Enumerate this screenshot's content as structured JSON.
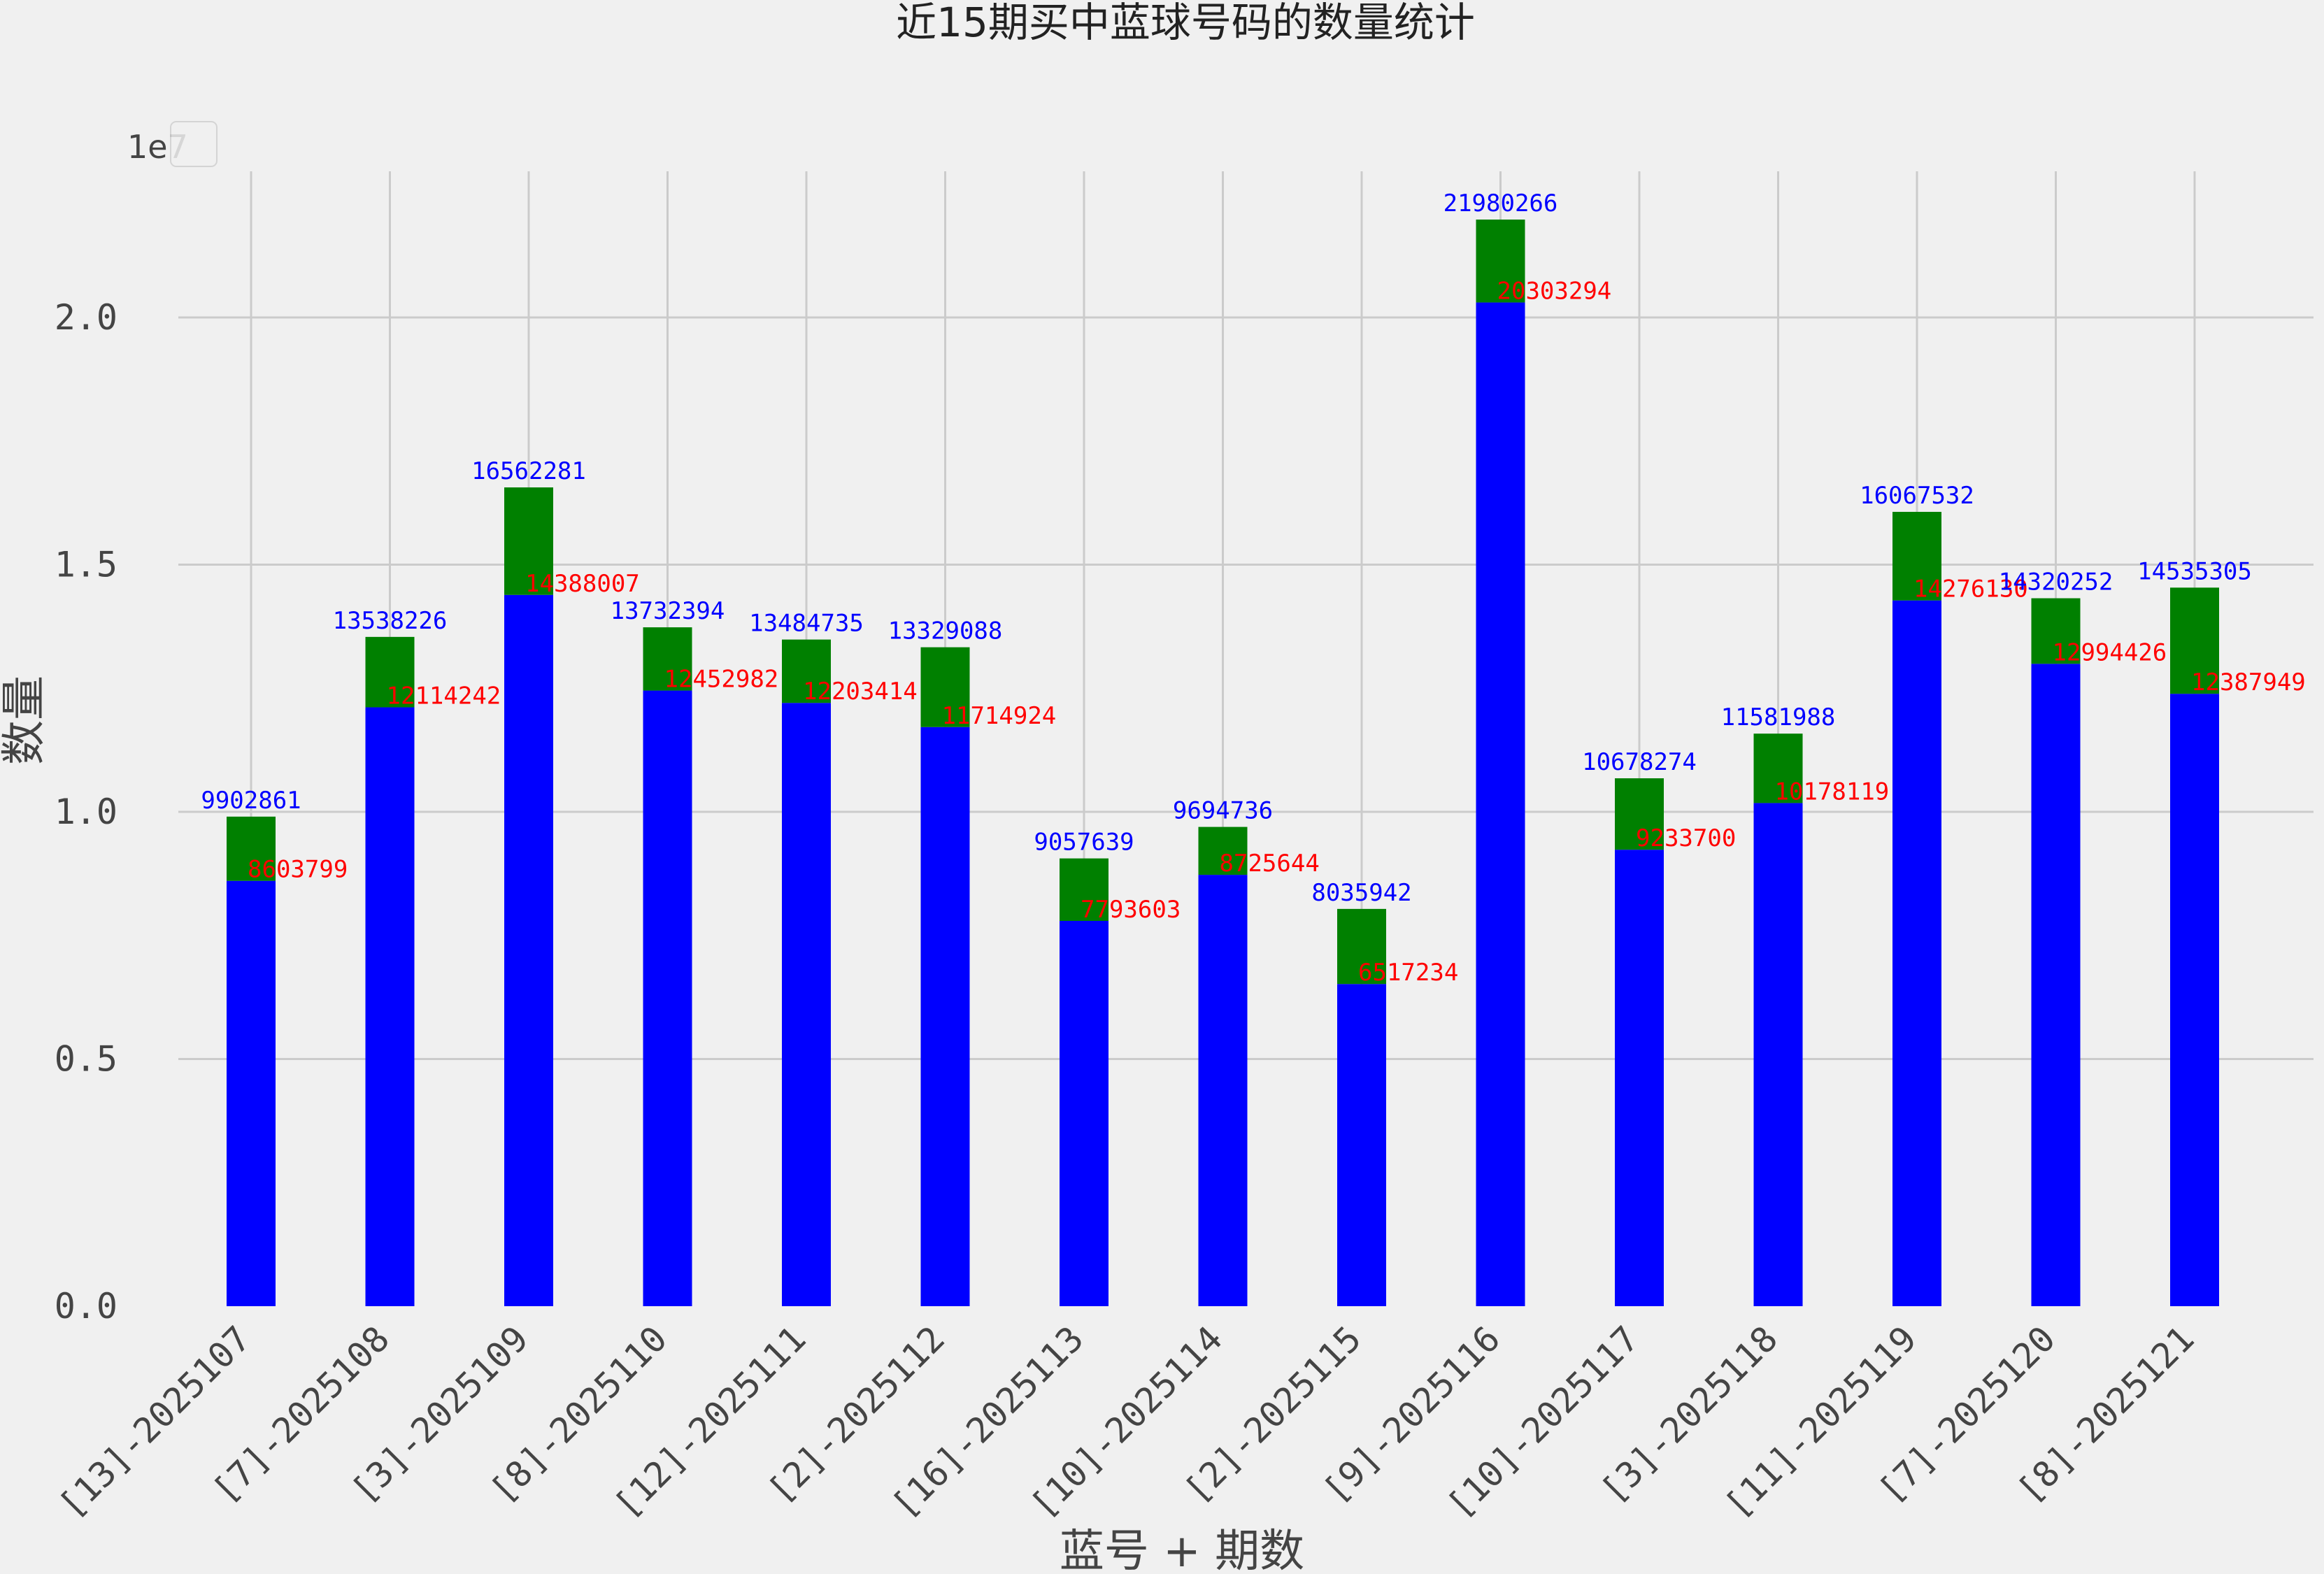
{
  "chart_data": {
    "type": "bar",
    "stacked": true,
    "title": "近15期买中蓝球号码的数量统计",
    "xlabel": "蓝号 + 期数",
    "ylabel": "数量",
    "y_offset_label": "1e7",
    "yticks": [
      "0.0",
      "0.5",
      "1.0",
      "1.5",
      "2.0"
    ],
    "ylim": [
      0,
      23000000
    ],
    "grid": true,
    "categories": [
      "[13]-2025107",
      "[7]-2025108",
      "[3]-2025109",
      "[8]-2025110",
      "[12]-2025111",
      "[2]-2025112",
      "[16]-2025113",
      "[10]-2025114",
      "[2]-2025115",
      "[9]-2025116",
      "[10]-2025117",
      "[3]-2025118",
      "[11]-2025119",
      "[7]-2025120",
      "[8]-2025121"
    ],
    "series": [
      {
        "color": "#0000ff",
        "values": [
          8603799,
          12114242,
          14388007,
          12452982,
          12203414,
          11714924,
          7793603,
          8725644,
          6517234,
          20303294,
          9233700,
          10178119,
          14276130,
          12994426,
          12387949
        ]
      },
      {
        "color": "#008000",
        "totals": [
          9902861,
          13538226,
          16562281,
          13732394,
          13484735,
          13329088,
          9057639,
          9694736,
          8035942,
          21980266,
          10678274,
          11581988,
          16067532,
          14320252,
          14535305
        ]
      }
    ],
    "label_colors": {
      "total": "#0000ff",
      "base": "#ff0000"
    }
  }
}
